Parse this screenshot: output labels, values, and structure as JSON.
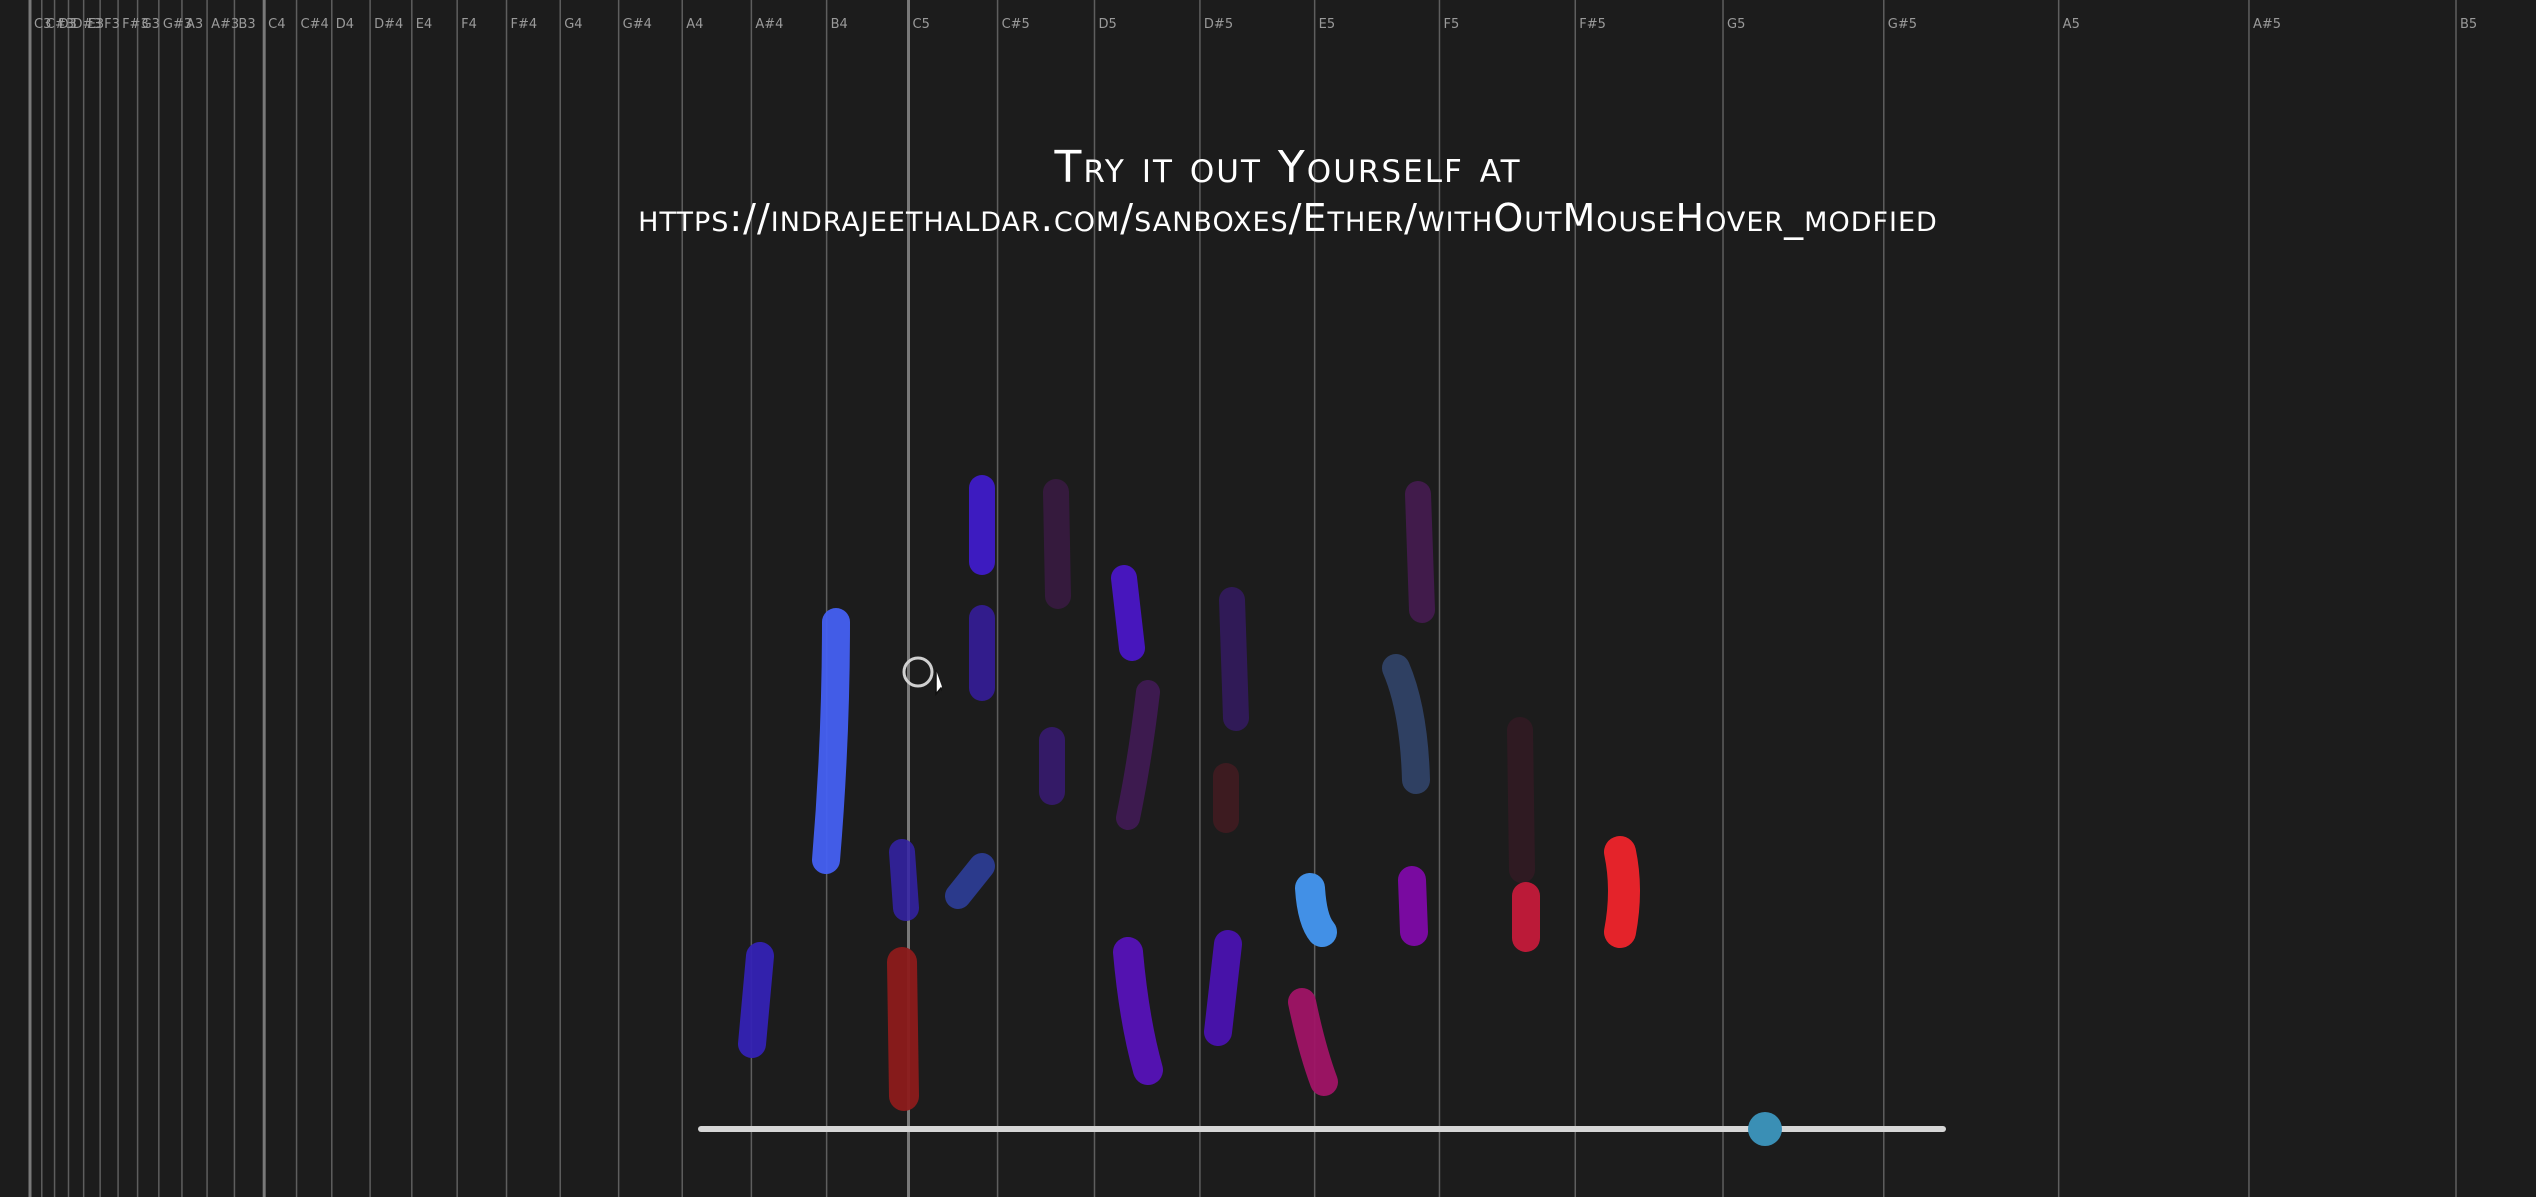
{
  "caption": {
    "line1": "Try it out Yourself at",
    "line2": "https://indrajeethaldar.com/sanboxes/Ether/withOutMouseHover_modfied"
  },
  "note_grid": {
    "line_color": "#6a6a6a",
    "label_color": "#9a9a9a",
    "columns": [
      {
        "label": "C3"
      },
      {
        "label": "C#3"
      },
      {
        "label": "D3"
      },
      {
        "label": "D#3"
      },
      {
        "label": "E3"
      },
      {
        "label": "F3"
      },
      {
        "label": "F#3"
      },
      {
        "label": "G3"
      },
      {
        "label": "G#3"
      },
      {
        "label": "A3"
      },
      {
        "label": "A#3"
      },
      {
        "label": "B3"
      },
      {
        "label": "C4"
      },
      {
        "label": "C#4"
      },
      {
        "label": "D4"
      },
      {
        "label": "D#4"
      },
      {
        "label": "E4"
      },
      {
        "label": "F4"
      },
      {
        "label": "F#4"
      },
      {
        "label": "G4"
      },
      {
        "label": "G#4"
      },
      {
        "label": "A4"
      },
      {
        "label": "A#4"
      },
      {
        "label": "B4"
      },
      {
        "label": "C5"
      },
      {
        "label": "C#5"
      },
      {
        "label": "D5"
      },
      {
        "label": "D#5"
      },
      {
        "label": "E5"
      },
      {
        "label": "F5"
      },
      {
        "label": "F#5"
      },
      {
        "label": "G5"
      },
      {
        "label": "G#5"
      },
      {
        "label": "A5"
      },
      {
        "label": "A#5"
      },
      {
        "label": "B5"
      }
    ]
  },
  "strokes_palette": {
    "blue": "#3f5cf0",
    "indigo": "#3a1fc4",
    "violet": "#5a12b8",
    "purple": "#7a0aa0",
    "magenta": "#9a0f6a",
    "red": "#e0242a",
    "sky": "#3f86e0",
    "dark_red": "#8a1a1a"
  },
  "slider": {
    "value_fraction": 0.855,
    "track_color": "#d6d6d6",
    "thumb_color": "#3a8fb5"
  },
  "icons": {
    "cursor": "mouse-pointer-icon"
  }
}
